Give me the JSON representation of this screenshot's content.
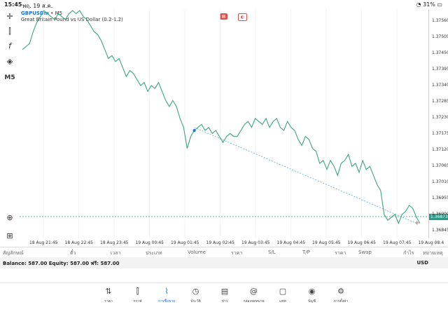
{
  "status_bar": {
    "time": "15:45",
    "date": "พฤ. 19 ส.ค.",
    "battery": "31%"
  },
  "symbol": {
    "name": "GBPUSDm",
    "timeframe": "M5",
    "description": "Great Britain Pound vs US Dollar (0.2-1.2)"
  },
  "toolbar": {
    "timeframe_label": "M5"
  },
  "current_price": "1.36873",
  "colors": {
    "line": "#3aa57c",
    "accent": "#1e6fd9",
    "price_tag": "#1f9e8a"
  },
  "chart_data": {
    "type": "line",
    "title": "",
    "x_ticks": [
      "18 Aug 21:45",
      "18 Aug 22:45",
      "18 Aug 23:45",
      "19 Aug 00:45",
      "19 Aug 01:45",
      "19 Aug 02:45",
      "19 Aug 03:45",
      "19 Aug 04:45",
      "19 Aug 05:45",
      "19 Aug 06:45",
      "19 Aug 07:45",
      "19 Aug 08:4"
    ],
    "y_ticks": [
      "1.37560",
      "1.37505",
      "1.37450",
      "1.37395",
      "1.37340",
      "1.37285",
      "1.37230",
      "1.37175",
      "1.37120",
      "1.37065",
      "1.37010",
      "1.36955",
      "1.36900",
      "1.36845"
    ],
    "ylim": [
      1.3682,
      1.37585
    ],
    "values": [
      1.3745,
      1.3746,
      1.3747,
      1.3751,
      1.3754,
      1.3756,
      1.3758,
      1.3757,
      1.3756,
      1.3755,
      1.3757,
      1.3756,
      1.3755,
      1.3757,
      1.3758,
      1.3757,
      1.3758,
      1.3756,
      1.3755,
      1.3753,
      1.3751,
      1.375,
      1.3748,
      1.3745,
      1.3742,
      1.3743,
      1.3741,
      1.3742,
      1.3739,
      1.3736,
      1.3738,
      1.3737,
      1.3735,
      1.3733,
      1.3734,
      1.3731,
      1.3733,
      1.3732,
      1.3734,
      1.3731,
      1.3728,
      1.3726,
      1.3728,
      1.3726,
      1.3722,
      1.3719,
      1.3712,
      1.3716,
      1.3718,
      1.3719,
      1.372,
      1.3718,
      1.3719,
      1.3717,
      1.3718,
      1.3716,
      1.3714,
      1.3716,
      1.3717,
      1.3716,
      1.3716,
      1.3718,
      1.372,
      1.3721,
      1.3719,
      1.3722,
      1.3721,
      1.372,
      1.3722,
      1.3719,
      1.3721,
      1.3722,
      1.3719,
      1.3718,
      1.3721,
      1.3719,
      1.3718,
      1.3715,
      1.3713,
      1.3716,
      1.3715,
      1.3712,
      1.3711,
      1.3707,
      1.3708,
      1.3705,
      1.3708,
      1.3706,
      1.3703,
      1.3707,
      1.3708,
      1.371,
      1.3706,
      1.3707,
      1.3704,
      1.3708,
      1.3705,
      1.3706,
      1.3703,
      1.37,
      1.3698,
      1.369,
      1.3688,
      1.3689,
      1.369,
      1.3687,
      1.369,
      1.3691,
      1.3693,
      1.3692,
      1.3689,
      1.3687
    ],
    "trend_line": {
      "from_index": 48,
      "from_value": 1.3719,
      "to_index": 110,
      "to_value": 1.3687
    },
    "marker_index": 48
  },
  "columns": [
    "สัญลักษณ์",
    "ตั๋ว",
    "เวลา",
    "ประเภท",
    "Volume",
    "ราคา",
    "S/L",
    "T/P",
    "ราคา",
    "Swap",
    "กำไร",
    "หมายเหตุ"
  ],
  "balance": {
    "text": "Balance: 587.00 Equity: 587.00 ฟรี: 587.00",
    "currency": "USD"
  },
  "tabs": [
    {
      "label": "ราคา",
      "icon": "quotes-icon"
    },
    {
      "label": "กราฟ",
      "icon": "candles-icon"
    },
    {
      "label": "การซื้อขาย",
      "icon": "trade-icon"
    },
    {
      "label": "ประวัติ",
      "icon": "history-icon"
    },
    {
      "label": "ข่าว",
      "icon": "news-icon"
    },
    {
      "label": "กล่องจดหมาย",
      "icon": "mail-icon"
    },
    {
      "label": "แชท",
      "icon": "chat-icon"
    },
    {
      "label": "บัญชี",
      "icon": "account-icon"
    },
    {
      "label": "การตั้งค่า",
      "icon": "settings-icon"
    }
  ]
}
